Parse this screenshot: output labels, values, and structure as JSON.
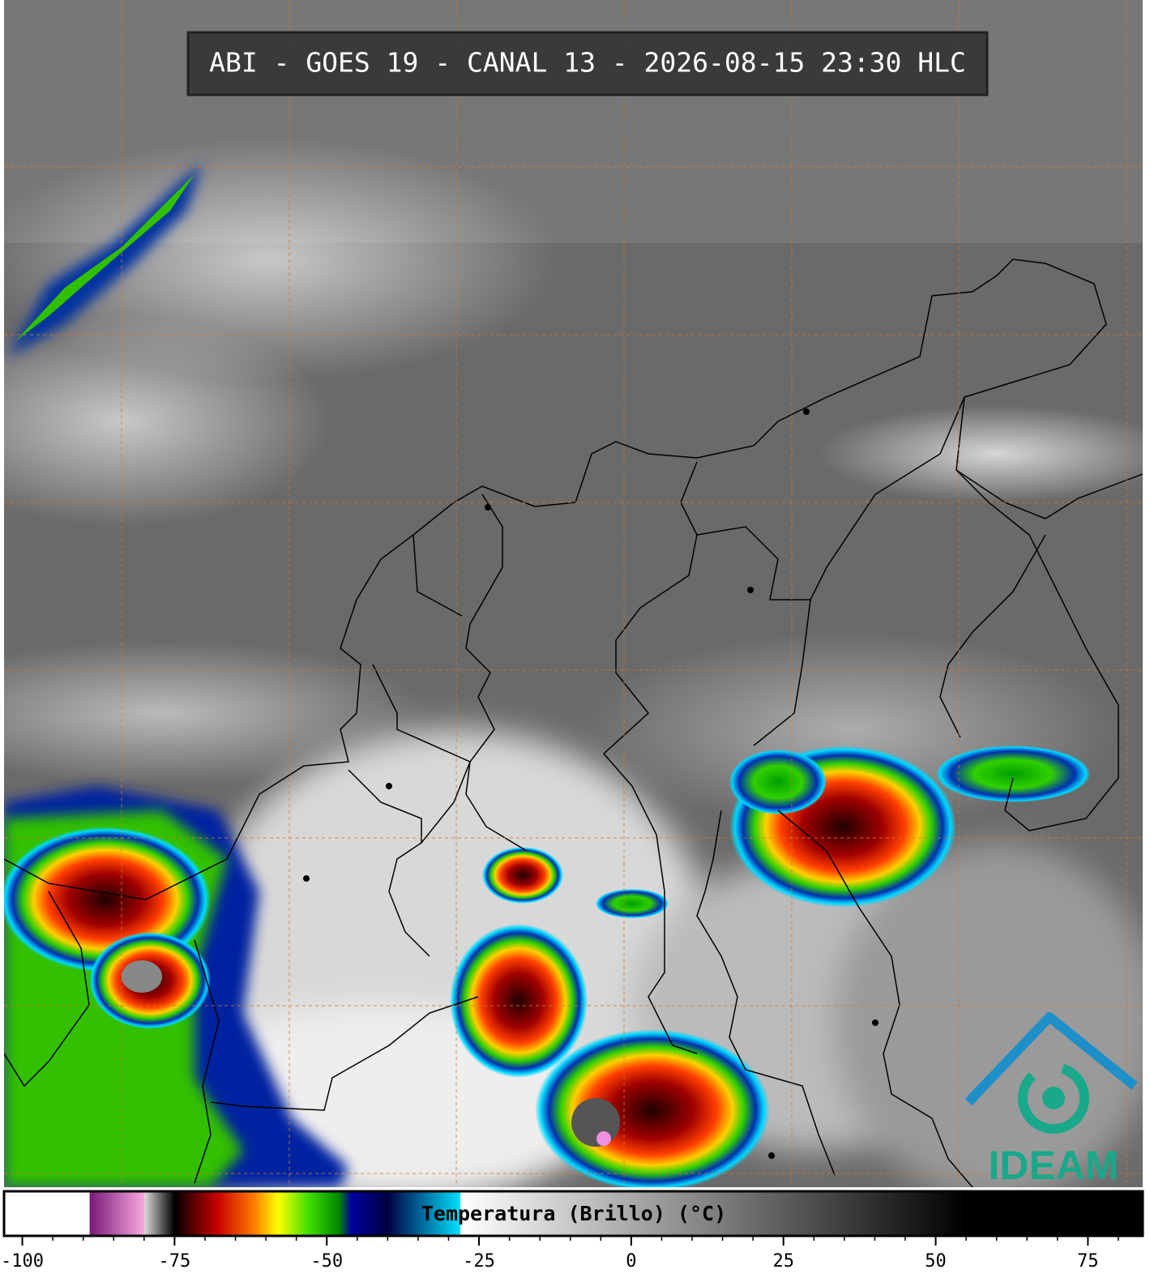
{
  "chart_data": {
    "type": "colorbar",
    "title": "ABI - GOES 19 - CANAL 13 - 2026-08-15 23:30 HLC",
    "colorbar_label": "Temperatura (Brillo) (°C)",
    "logo": "IDEAM",
    "xlim": [
      -103,
      84
    ],
    "xticks": [
      -100,
      -75,
      -50,
      -25,
      0,
      25,
      50,
      75
    ],
    "xminorticks": [
      -95,
      -90,
      -85,
      -80,
      -70,
      -65,
      -60,
      -55,
      -45,
      -40,
      -35,
      -30,
      -20,
      -15,
      -10,
      -5,
      5,
      10,
      15,
      20,
      30,
      35,
      40,
      45,
      55,
      60,
      65,
      70,
      80
    ],
    "colormap": [
      {
        "value": -103,
        "color": "#ffffff"
      },
      {
        "value": -89,
        "color": "#ffffff"
      },
      {
        "value": -88.9,
        "color": "#7a1a7a"
      },
      {
        "value": -80,
        "color": "#f7a8e0"
      },
      {
        "value": -79.9,
        "color": "#d8d8d8"
      },
      {
        "value": -75,
        "color": "#000000"
      },
      {
        "value": -73,
        "color": "#3a0000"
      },
      {
        "value": -68,
        "color": "#c80000"
      },
      {
        "value": -62,
        "color": "#ff7a00"
      },
      {
        "value": -58,
        "color": "#ffff00"
      },
      {
        "value": -53,
        "color": "#40e000"
      },
      {
        "value": -48,
        "color": "#008800"
      },
      {
        "value": -46,
        "color": "#0000a0"
      },
      {
        "value": -40,
        "color": "#000040"
      },
      {
        "value": -28.1,
        "color": "#00e0ff"
      },
      {
        "value": -28,
        "color": "#ffffff"
      },
      {
        "value": 55,
        "color": "#000000"
      },
      {
        "value": 84,
        "color": "#000000"
      }
    ]
  }
}
